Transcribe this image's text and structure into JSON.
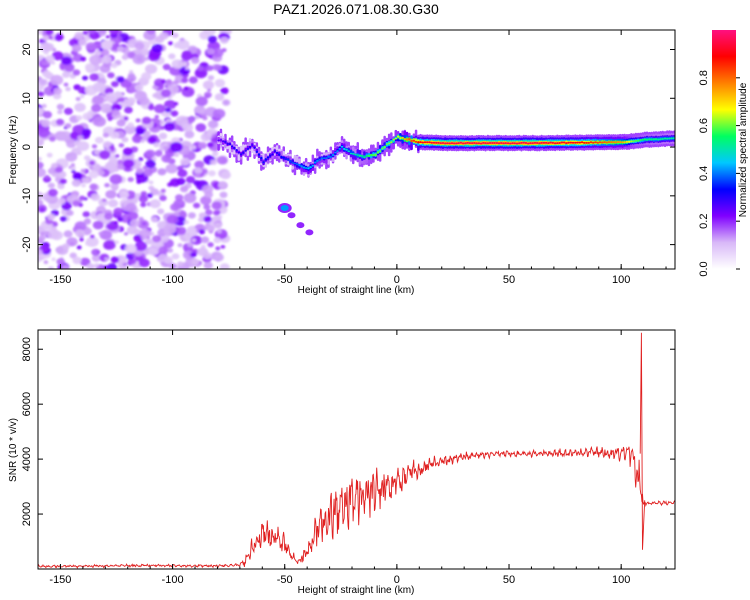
{
  "page_title": "PAZ1.2026.071.08.30.G30",
  "chart_data": [
    {
      "type": "heatmap",
      "title": "PAZ1.2026.071.08.30.G30",
      "xlabel": "Height of straight line (km)",
      "ylabel": "Frequency (Hz)",
      "xlim": [
        -160,
        124
      ],
      "ylim": [
        -25,
        24
      ],
      "xticks": [
        -150,
        -100,
        -50,
        0,
        50,
        100
      ],
      "yticks": [
        -20,
        -10,
        0,
        10,
        20
      ],
      "colorbar": {
        "label": "Normalized spectral amplitude",
        "range": [
          0,
          1
        ],
        "ticks": [
          0.0,
          0.2,
          0.4,
          0.6,
          0.8
        ],
        "colors": [
          "#ffffff",
          "#d8b8f8",
          "#8000ff",
          "#0000ff",
          "#00c8ff",
          "#00ff60",
          "#ffff00",
          "#ff8000",
          "#ff0000",
          "#ff1080"
        ]
      },
      "noise_region_x": [
        -160,
        -79
      ],
      "ridge": {
        "x": [
          -80,
          -75,
          -70,
          -65,
          -60,
          -55,
          -50,
          -45,
          -40,
          -35,
          -30,
          -25,
          -20,
          -15,
          -10,
          -5,
          0,
          5,
          10,
          20,
          40,
          60,
          80,
          100,
          105,
          110,
          124
        ],
        "frequency": [
          1.5,
          0.5,
          -1.5,
          0.5,
          -3.0,
          -1.0,
          -2.5,
          -3.5,
          -4.5,
          -2.5,
          -2.0,
          0.0,
          -1.5,
          -2.0,
          -1.5,
          0.5,
          2.0,
          1.5,
          1.0,
          0.8,
          0.8,
          0.8,
          0.9,
          1.0,
          1.2,
          1.5,
          1.8
        ],
        "amplitude": [
          0.25,
          0.3,
          0.3,
          0.3,
          0.35,
          0.3,
          0.35,
          0.4,
          0.45,
          0.4,
          0.4,
          0.45,
          0.5,
          0.55,
          0.6,
          0.6,
          0.65,
          0.8,
          0.9,
          0.95,
          0.95,
          0.95,
          0.9,
          0.75,
          0.6,
          0.55,
          0.5
        ]
      },
      "secondary_feature": {
        "x": [
          -50,
          -47,
          -43,
          -39
        ],
        "frequency": [
          -12.5,
          -14.0,
          -16.0,
          -17.5
        ]
      }
    },
    {
      "type": "line",
      "xlabel": "Height of straight line (km)",
      "ylabel": "SNR (10 * v/v)",
      "xlim": [
        -160,
        124
      ],
      "ylim": [
        0,
        8700
      ],
      "xticks": [
        -150,
        -100,
        -50,
        0,
        50,
        100
      ],
      "yticks": [
        2000,
        4000,
        6000,
        8000
      ],
      "color": "#e02020",
      "series": [
        {
          "name": "SNR",
          "x": [
            -160,
            -140,
            -120,
            -100,
            -80,
            -70,
            -67,
            -64,
            -60,
            -57,
            -54,
            -50,
            -47,
            -44,
            -40,
            -37,
            -34,
            -30,
            -27,
            -24,
            -20,
            -17,
            -14,
            -10,
            -7,
            -4,
            0,
            3,
            6,
            10,
            15,
            20,
            30,
            40,
            50,
            60,
            70,
            80,
            90,
            100,
            104,
            106,
            108,
            109,
            110,
            112,
            116,
            120,
            124
          ],
          "base": [
            100,
            100,
            130,
            120,
            110,
            150,
            350,
            800,
            1400,
            1200,
            1100,
            900,
            500,
            250,
            600,
            1200,
            1800,
            1900,
            2100,
            2300,
            2500,
            2700,
            2800,
            2900,
            2900,
            3000,
            3100,
            3300,
            3500,
            3600,
            3800,
            3900,
            4100,
            4150,
            4200,
            4200,
            4200,
            4250,
            4250,
            4200,
            4100,
            4000,
            3500,
            2800,
            2400,
            2400,
            2400,
            2400,
            2400
          ],
          "spread": [
            60,
            60,
            60,
            60,
            60,
            80,
            300,
            600,
            800,
            700,
            600,
            500,
            250,
            150,
            400,
            800,
            1000,
            1100,
            1200,
            1300,
            1300,
            1300,
            1200,
            1100,
            1000,
            900,
            800,
            700,
            550,
            450,
            350,
            250,
            200,
            150,
            150,
            150,
            180,
            200,
            250,
            350,
            500,
            800,
            1600,
            900,
            150,
            100,
            100,
            100,
            100
          ]
        }
      ],
      "peak": {
        "x": 109,
        "y": 8600
      },
      "dip": {
        "x": 109.5,
        "y": 700
      }
    }
  ]
}
